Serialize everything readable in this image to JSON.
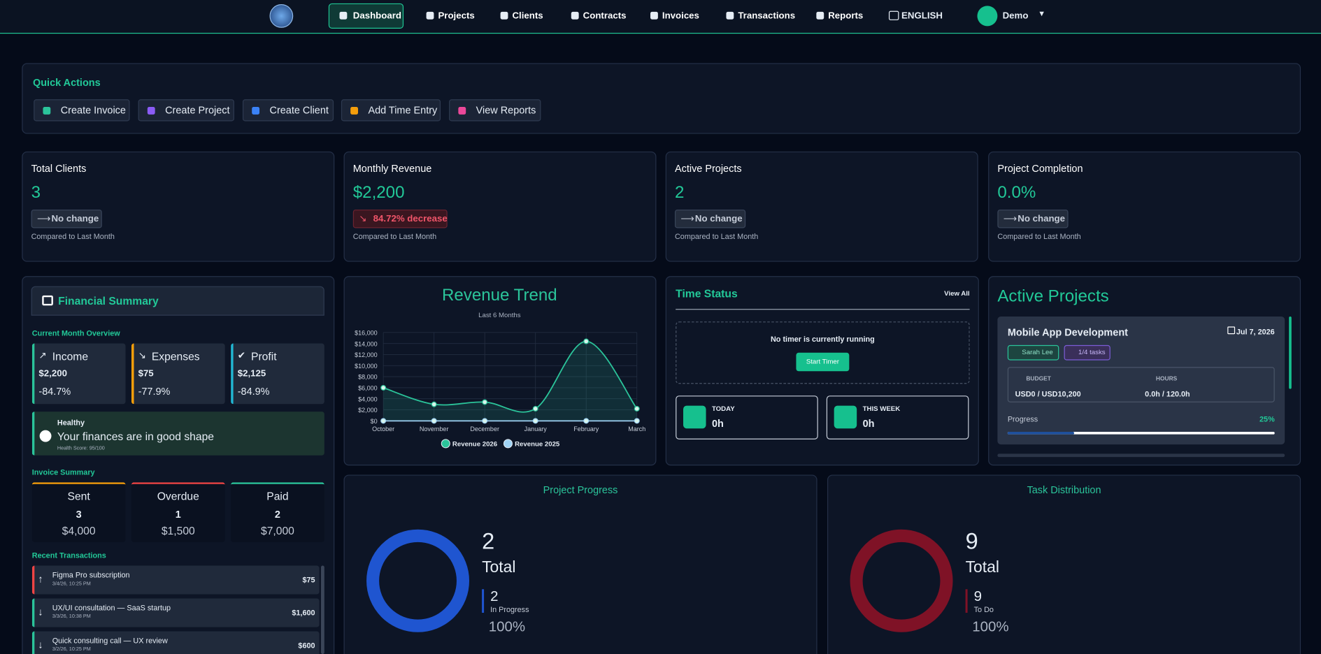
{
  "nav": {
    "items": [
      "Dashboard",
      "Projects",
      "Clients",
      "Contracts",
      "Invoices",
      "Transactions",
      "Reports"
    ],
    "language": "ENGLISH",
    "user": "Demo"
  },
  "quick_actions": {
    "title": "Quick Actions",
    "buttons": [
      "Create Invoice",
      "Create Project",
      "Create Client",
      "Add Time Entry",
      "View Reports"
    ]
  },
  "stats": [
    {
      "label": "Total Clients",
      "value": "3",
      "change": "No change",
      "note": "Compared to Last Month"
    },
    {
      "label": "Monthly Revenue",
      "value": "$2,200",
      "change": "84.72% decrease",
      "note": "Compared to Last Month"
    },
    {
      "label": "Active Projects",
      "value": "2",
      "change": "No change",
      "note": "Compared to Last Month"
    },
    {
      "label": "Project Completion",
      "value": "0.0%",
      "change": "No change",
      "note": "Compared to Last Month"
    }
  ],
  "financial_summary": {
    "title": "Financial Summary",
    "overview_title": "Current Month Overview",
    "cards": [
      {
        "label": "Income",
        "value": "$2,200",
        "change": "-84.7%"
      },
      {
        "label": "Expenses",
        "value": "$75",
        "change": "-77.9%"
      },
      {
        "label": "Profit",
        "value": "$2,125",
        "change": "-84.9%"
      }
    ],
    "health": {
      "status": "Healthy",
      "message": "Your finances are in good shape",
      "score": "Health Score: 95/100"
    },
    "invoice_title": "Invoice Summary",
    "invoices": [
      {
        "label": "Sent",
        "count": "3",
        "amount": "$4,000"
      },
      {
        "label": "Overdue",
        "count": "1",
        "amount": "$1,500"
      },
      {
        "label": "Paid",
        "count": "2",
        "amount": "$7,000"
      }
    ],
    "transactions_title": "Recent Transactions",
    "transactions": [
      {
        "name": "Figma Pro subscription",
        "date": "3/4/26, 10:25 PM",
        "amount": "$75"
      },
      {
        "name": "UX/UI consultation — SaaS startup",
        "date": "3/3/26, 10:38 PM",
        "amount": "$1,600"
      },
      {
        "name": "Quick consulting call — UX review",
        "date": "3/2/26, 10:25 PM",
        "amount": "$600"
      }
    ]
  },
  "chart_data": {
    "type": "line",
    "title": "Revenue Trend",
    "subtitle": "Last 6 Months",
    "categories": [
      "October",
      "November",
      "December",
      "January",
      "February",
      "March"
    ],
    "series": [
      {
        "name": "Revenue 2026",
        "color": "#2bc49a",
        "values": [
          6000,
          3000,
          3400,
          2200,
          14400,
          2200
        ]
      },
      {
        "name": "Revenue 2025",
        "color": "#9fd3f5",
        "values": [
          0,
          0,
          0,
          0,
          0,
          0
        ]
      }
    ],
    "ylim": [
      0,
      16000
    ],
    "yticks": [
      {
        "value": 0,
        "label": "$0"
      },
      {
        "value": 2000,
        "label": "$2,000"
      },
      {
        "value": 4000,
        "label": "$4,000"
      },
      {
        "value": 6000,
        "label": "$6,000"
      },
      {
        "value": 8000,
        "label": "$8,000"
      },
      {
        "value": 10000,
        "label": "$10,000"
      },
      {
        "value": 12000,
        "label": "$12,000"
      },
      {
        "value": 14000,
        "label": "$14,000"
      },
      {
        "value": 16000,
        "label": "$16,000"
      }
    ],
    "grid": true,
    "legend": "bottom"
  },
  "time_status": {
    "title": "Time Status",
    "view_all": "View All",
    "no_timer": "No timer is currently running",
    "button": "Start Timer",
    "today_label": "TODAY",
    "today": "0h",
    "week_label": "THIS WEEK",
    "week": "0h"
  },
  "active_projects": {
    "title": "Active Projects",
    "name": "Mobile App Development",
    "date": "Jul 7, 2026",
    "client": "Sarah Lee",
    "tasks": "1/4 tasks",
    "budget_label": "BUDGET",
    "budget": "USD0 / USD10,200",
    "hours_label": "HOURS",
    "hours": "0.0h / 120.0h",
    "progress_label": "Progress",
    "progress": 25,
    "progress_value_label": "25%"
  },
  "project_progress": {
    "title": "Project Progress",
    "total": 2,
    "total_label": "Total",
    "segments": [
      {
        "name": "In Progress",
        "value": 2,
        "percent": "100%",
        "color": "#1f55d0"
      }
    ]
  },
  "task_distribution": {
    "title": "Task Distribution",
    "total": 9,
    "total_label": "Total",
    "segments": [
      {
        "name": "To Do",
        "value": 9,
        "percent": "100%",
        "color": "#7f1226"
      }
    ]
  }
}
